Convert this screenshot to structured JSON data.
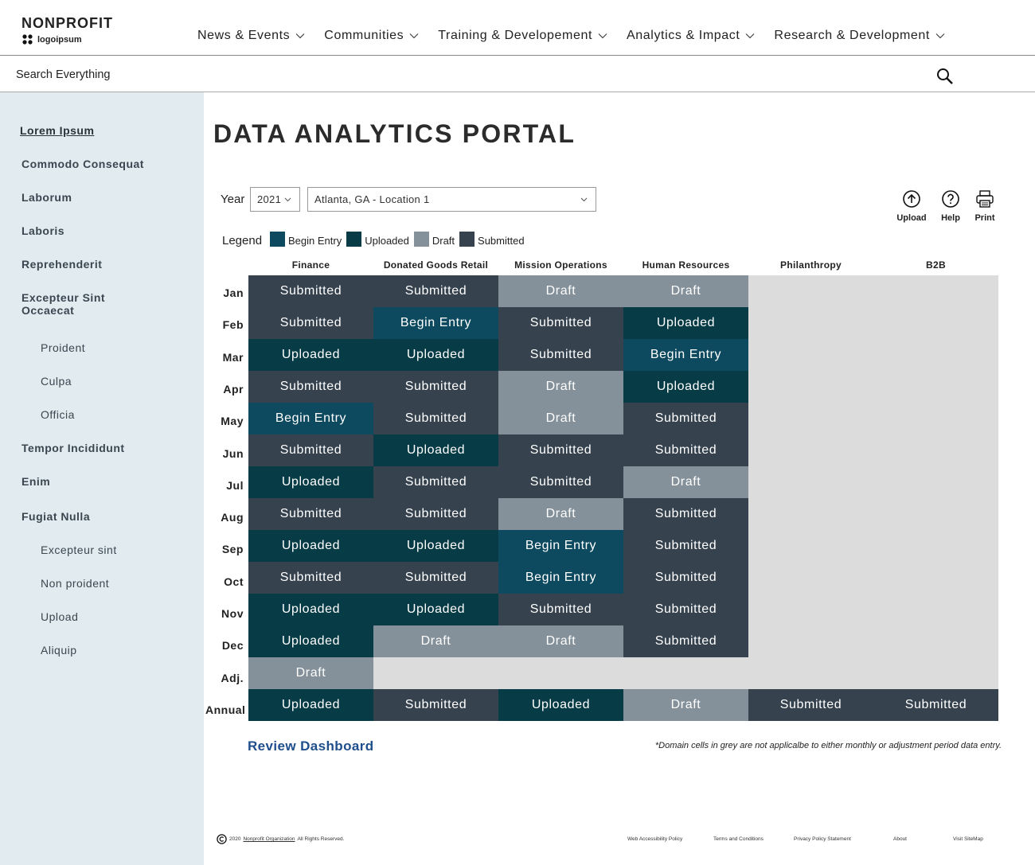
{
  "header": {
    "brand": "NONPROFIT",
    "logo": "logoipsum"
  },
  "nav": [
    "News & Events",
    "Communities",
    "Training & Developement",
    "Analytics & Impact",
    "Research & Development"
  ],
  "search": {
    "placeholder": "Search Everything"
  },
  "sidebar": {
    "items": [
      {
        "label": "Lorem Ipsum"
      },
      {
        "label": "Commodo Consequat"
      },
      {
        "label": "Laborum"
      },
      {
        "label": "Laboris"
      },
      {
        "label": "Reprehenderit"
      },
      {
        "label": "Excepteur Sint Occaecat",
        "children": [
          "Proident",
          "Culpa",
          "Officia"
        ]
      },
      {
        "label": "Tempor Incididunt"
      },
      {
        "label": "Enim"
      },
      {
        "label": "Fugiat Nulla",
        "children": [
          "Excepteur sint",
          "Non proident",
          "Upload",
          "Aliquip"
        ]
      }
    ]
  },
  "main": {
    "title": "DATA ANALYTICS PORTAL"
  },
  "filters": {
    "year_label": "Year",
    "year": "2021",
    "location": "Atlanta, GA - Location 1"
  },
  "actions": [
    "Upload",
    "Help",
    "Print"
  ],
  "legend": {
    "label": "Legend",
    "items": [
      {
        "name": "Begin Entry",
        "color": "#0d4a5f"
      },
      {
        "name": "Uploaded",
        "color": "#073c46"
      },
      {
        "name": "Draft",
        "color": "#85919a"
      },
      {
        "name": "Submitted",
        "color": "#36434f"
      }
    ]
  },
  "grid": {
    "columns": [
      "Finance",
      "Donated Goods Retail",
      "Mission Operations",
      "Human Resources",
      "Philanthropy",
      "B2B"
    ],
    "rows": [
      {
        "label": "Jan",
        "cells": [
          "Submitted",
          "Submitted",
          "Draft",
          "Draft",
          null,
          null
        ]
      },
      {
        "label": "Feb",
        "cells": [
          "Submitted",
          "Begin Entry",
          "Submitted",
          "Uploaded",
          null,
          null
        ]
      },
      {
        "label": "Mar",
        "cells": [
          "Uploaded",
          "Uploaded",
          "Submitted",
          "Begin Entry",
          null,
          null
        ]
      },
      {
        "label": "Apr",
        "cells": [
          "Submitted",
          "Submitted",
          "Draft",
          "Uploaded",
          null,
          null
        ]
      },
      {
        "label": "May",
        "cells": [
          "Begin Entry",
          "Submitted",
          "Draft",
          "Submitted",
          null,
          null
        ]
      },
      {
        "label": "Jun",
        "cells": [
          "Submitted",
          "Uploaded",
          "Submitted",
          "Submitted",
          null,
          null
        ]
      },
      {
        "label": "Jul",
        "cells": [
          "Uploaded",
          "Submitted",
          "Submitted",
          "Draft",
          null,
          null
        ]
      },
      {
        "label": "Aug",
        "cells": [
          "Submitted",
          "Submitted",
          "Draft",
          "Submitted",
          null,
          null
        ]
      },
      {
        "label": "Sep",
        "cells": [
          "Uploaded",
          "Uploaded",
          "Begin Entry",
          "Submitted",
          null,
          null
        ]
      },
      {
        "label": "Oct",
        "cells": [
          "Submitted",
          "Submitted",
          "Begin Entry",
          "Submitted",
          null,
          null
        ]
      },
      {
        "label": "Nov",
        "cells": [
          "Uploaded",
          "Uploaded",
          "Submitted",
          "Submitted",
          null,
          null
        ]
      },
      {
        "label": "Dec",
        "cells": [
          "Uploaded",
          "Draft",
          "Draft",
          "Submitted",
          null,
          null
        ]
      },
      {
        "label": "Adj.",
        "cells": [
          "Draft",
          null,
          null,
          null,
          null,
          null
        ]
      },
      {
        "label": "Annual",
        "cells": [
          "Uploaded",
          "Submitted",
          "Uploaded",
          "Draft",
          "Submitted",
          "Submitted"
        ]
      }
    ]
  },
  "review_link": "Review Dashboard",
  "note": "*Domain cells in grey are not applicalbe to either monthly or adjustment period data entry.",
  "footer": {
    "year": "2020",
    "org": "Nonprofit Organization",
    "rights": "All Rights Reserved.",
    "links": [
      "Web Accessibility Policy",
      "Terms and Conditions",
      "Privacy Policy Statement",
      "About",
      "Visit SiteMap"
    ]
  }
}
